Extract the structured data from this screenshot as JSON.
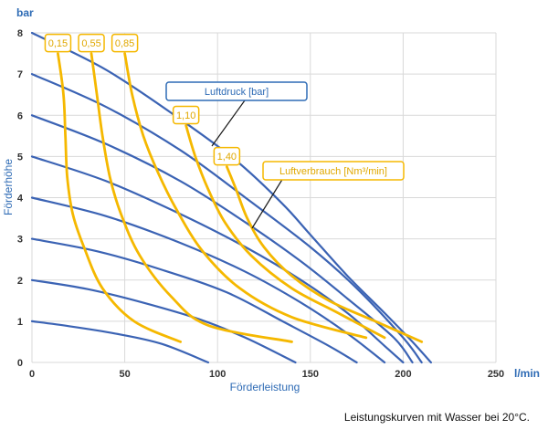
{
  "chart_data": {
    "type": "line",
    "title": "",
    "caption": "Leistungskurven mit Wasser bei 20°C.",
    "xlabel": "Förderleistung",
    "ylabel": "Förderhöhe",
    "x_unit": "l/min",
    "y_unit": "bar",
    "xlim": [
      0,
      250
    ],
    "ylim": [
      0,
      8
    ],
    "x_ticks": [
      "0",
      "50",
      "100",
      "150",
      "200",
      "250"
    ],
    "y_ticks": [
      "0",
      "1",
      "2",
      "3",
      "4",
      "5",
      "6",
      "7",
      "8"
    ],
    "grid": true,
    "colors": {
      "pressure": "#3b63b4",
      "air": "#f5b800",
      "grid": "#d9d9d9"
    },
    "pressure_legend": "Luftdruck [bar]",
    "air_legend": "Luftverbrauch [Nm³/min]",
    "pressure_series": [
      {
        "name": "1 bar",
        "points": [
          [
            0,
            1
          ],
          [
            20,
            0.88
          ],
          [
            45,
            0.7
          ],
          [
            70,
            0.45
          ],
          [
            95,
            0
          ]
        ]
      },
      {
        "name": "2 bar",
        "points": [
          [
            0,
            2
          ],
          [
            30,
            1.78
          ],
          [
            60,
            1.45
          ],
          [
            90,
            1.05
          ],
          [
            115,
            0.6
          ],
          [
            142,
            0
          ]
        ]
      },
      {
        "name": "3 bar",
        "points": [
          [
            0,
            3
          ],
          [
            35,
            2.7
          ],
          [
            70,
            2.25
          ],
          [
            105,
            1.7
          ],
          [
            135,
            1.0
          ],
          [
            160,
            0.4
          ],
          [
            175,
            0
          ]
        ]
      },
      {
        "name": "4 bar",
        "points": [
          [
            0,
            4
          ],
          [
            40,
            3.55
          ],
          [
            80,
            2.9
          ],
          [
            115,
            2.2
          ],
          [
            145,
            1.45
          ],
          [
            170,
            0.7
          ],
          [
            190,
            0
          ]
        ]
      },
      {
        "name": "5 bar",
        "points": [
          [
            0,
            5
          ],
          [
            40,
            4.4
          ],
          [
            80,
            3.6
          ],
          [
            115,
            2.8
          ],
          [
            145,
            2.0
          ],
          [
            170,
            1.2
          ],
          [
            190,
            0.4
          ],
          [
            200,
            0
          ]
        ]
      },
      {
        "name": "6 bar",
        "points": [
          [
            0,
            6
          ],
          [
            40,
            5.3
          ],
          [
            80,
            4.4
          ],
          [
            115,
            3.4
          ],
          [
            145,
            2.45
          ],
          [
            170,
            1.55
          ],
          [
            195,
            0.6
          ],
          [
            205,
            0
          ]
        ]
      },
      {
        "name": "7 bar",
        "points": [
          [
            0,
            7
          ],
          [
            40,
            6.2
          ],
          [
            80,
            5.15
          ],
          [
            115,
            4.0
          ],
          [
            150,
            2.8
          ],
          [
            175,
            1.8
          ],
          [
            200,
            0.6
          ],
          [
            210,
            0
          ]
        ]
      },
      {
        "name": "8 bar",
        "points": [
          [
            0,
            8
          ],
          [
            40,
            7.1
          ],
          [
            80,
            5.9
          ],
          [
            110,
            4.9
          ],
          [
            135,
            3.85
          ],
          [
            150,
            3.1
          ],
          [
            170,
            2.1
          ],
          [
            190,
            1.2
          ],
          [
            205,
            0.5
          ],
          [
            215,
            0
          ]
        ]
      }
    ],
    "air_series": [
      {
        "name": "0,15",
        "label": "0,15",
        "points": [
          [
            14,
            7.5
          ],
          [
            17,
            6.5
          ],
          [
            18,
            5.5
          ],
          [
            19,
            4.5
          ],
          [
            22,
            3.6
          ],
          [
            28,
            2.8
          ],
          [
            38,
            1.8
          ],
          [
            55,
            1.0
          ],
          [
            80,
            0.5
          ]
        ]
      },
      {
        "name": "0,55",
        "label": "0,55",
        "points": [
          [
            32,
            7.5
          ],
          [
            35,
            6.5
          ],
          [
            38,
            5.5
          ],
          [
            42,
            4.5
          ],
          [
            48,
            3.6
          ],
          [
            58,
            2.6
          ],
          [
            75,
            1.6
          ],
          [
            95,
            0.9
          ],
          [
            140,
            0.5
          ]
        ]
      },
      {
        "name": "0,85",
        "label": "0,85",
        "points": [
          [
            50,
            7.5
          ],
          [
            54,
            6.5
          ],
          [
            60,
            5.5
          ],
          [
            68,
            4.6
          ],
          [
            78,
            3.7
          ],
          [
            92,
            2.7
          ],
          [
            112,
            1.8
          ],
          [
            140,
            1.1
          ],
          [
            180,
            0.6
          ]
        ]
      },
      {
        "name": "1,10",
        "label": "1,10",
        "points": [
          [
            83,
            5.75
          ],
          [
            88,
            5.0
          ],
          [
            95,
            4.2
          ],
          [
            104,
            3.4
          ],
          [
            118,
            2.6
          ],
          [
            140,
            1.8
          ],
          [
            165,
            1.2
          ],
          [
            190,
            0.6
          ]
        ]
      },
      {
        "name": "1,40",
        "label": "1,40",
        "points": [
          [
            105,
            4.75
          ],
          [
            110,
            4.2
          ],
          [
            116,
            3.5
          ],
          [
            125,
            2.8
          ],
          [
            140,
            2.1
          ],
          [
            160,
            1.5
          ],
          [
            185,
            1.0
          ],
          [
            210,
            0.5
          ]
        ]
      }
    ]
  }
}
